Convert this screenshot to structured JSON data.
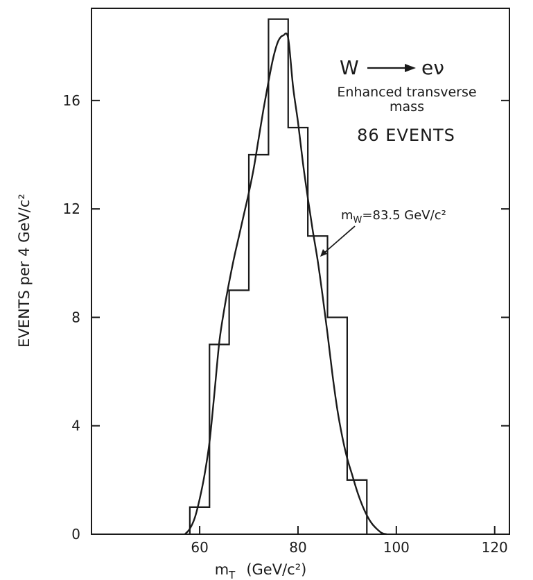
{
  "chart_data": {
    "type": "bar",
    "title": "",
    "xlabel": "m_T (GeV/c²)",
    "xlabel_main": "m",
    "xlabel_sub": "T",
    "xlabel_units": "(GeV/c²)",
    "ylabel": "EVENTS per 4 GeV/c²",
    "xlim": [
      38,
      123
    ],
    "ylim": [
      0,
      19.4
    ],
    "xticks": [
      60,
      80,
      100,
      120
    ],
    "yticks": [
      0,
      4,
      8,
      12,
      16
    ],
    "histogram": {
      "bin_edges": [
        58,
        62,
        66,
        70,
        74,
        78,
        82,
        86,
        90,
        94
      ],
      "values": [
        1,
        7,
        9,
        14,
        19,
        15,
        11,
        8,
        2
      ]
    },
    "fit_curve": {
      "x": [
        57,
        58,
        59,
        60,
        61,
        62,
        63,
        64,
        65,
        66,
        67,
        68,
        69,
        70,
        71,
        72,
        73,
        74,
        75,
        76,
        77,
        78,
        79,
        80,
        81,
        82,
        83,
        84,
        85,
        86,
        87,
        88,
        89,
        90,
        91,
        92,
        93,
        94,
        95,
        96,
        97,
        98
      ],
      "y": [
        0,
        0.2,
        0.6,
        1.3,
        2.2,
        3.4,
        5.2,
        7.1,
        8.3,
        9.3,
        10.2,
        11.0,
        11.8,
        12.6,
        13.5,
        14.6,
        15.7,
        16.7,
        17.6,
        18.2,
        18.4,
        18.3,
        16.5,
        15.2,
        13.7,
        12.4,
        11.2,
        10.1,
        8.8,
        7.4,
        5.9,
        4.6,
        3.6,
        2.8,
        2.2,
        1.6,
        1.1,
        0.7,
        0.4,
        0.2,
        0.05,
        0
      ],
      "label": "m_W = 83.5 GeV/c²"
    },
    "annotations": {
      "process_w": "W",
      "process_ev": "eν",
      "desc_line1": "Enhanced transverse",
      "desc_line2": "mass",
      "events": "86 EVENTS",
      "mw_label_main": "m",
      "mw_label_sub": "W",
      "mw_label_rest": "=83.5 GeV/c²"
    },
    "grid": false,
    "legend": "none"
  }
}
